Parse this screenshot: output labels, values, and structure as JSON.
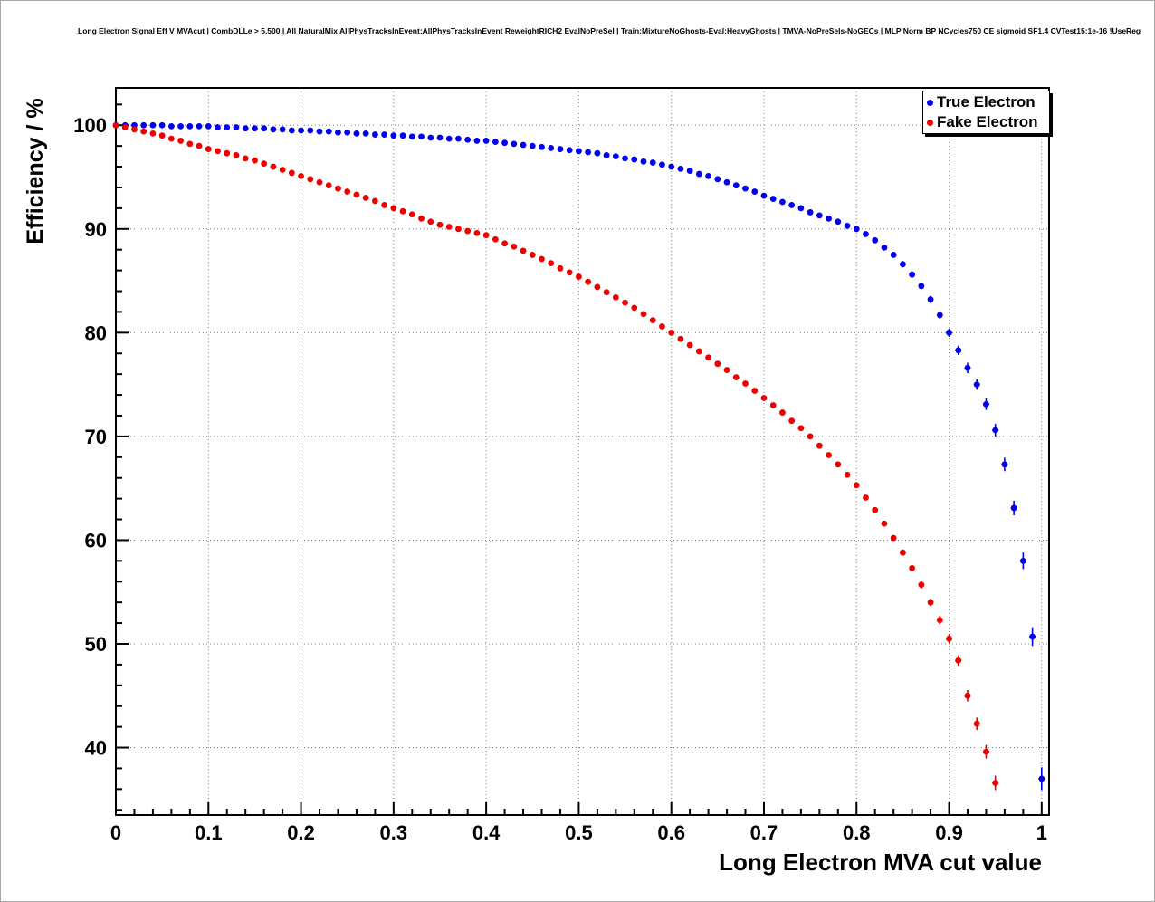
{
  "header": {
    "title": "Long Electron Signal Eff V MVAcut | CombDLLe > 5.500 | All NaturalMix AllPhysTracksInEvent:AllPhysTracksInEvent ReweightRICH2 EvalNoPreSel | Train:MixtureNoGhosts-Eval:HeavyGhosts | TMVA-NoPreSels-NoGECs | MLP Norm BP NCycles750 CE sigmoid SF1.4 CVTest15:1e-16 !UseReg"
  },
  "axes": {
    "y_title": "Efficiency / %",
    "x_title": "Long Electron MVA cut value"
  },
  "legend": {
    "items": [
      {
        "label": "True Electron",
        "color": "#0000ee"
      },
      {
        "label": "Fake Electron",
        "color": "#ee0000"
      }
    ]
  },
  "chart_data": {
    "type": "scatter",
    "title": "Long Electron Signal Eff V MVAcut | CombDLLe > 5.500 | All NaturalMix AllPhysTracksInEvent:AllPhysTracksInEvent ReweightRICH2 EvalNoPreSel | Train:MixtureNoGhosts-Eval:HeavyGhosts | TMVA-NoPreSels-NoGECs | MLP Norm BP NCycles750 CE sigmoid SF1.4 CVTest15:1e-16 !UseReg",
    "xlabel": "Long Electron MVA cut value",
    "ylabel": "Efficiency / %",
    "xlim": [
      0,
      1.008
    ],
    "ylim": [
      33.5,
      103.6
    ],
    "grid": "dotted-major",
    "legend_position": "top-right",
    "x_ticks": [
      0,
      0.1,
      0.2,
      0.3,
      0.4,
      0.5,
      0.6,
      0.7,
      0.8,
      0.9,
      1.0
    ],
    "x_ticklabels": [
      "0",
      "0.1",
      "0.2",
      "0.3",
      "0.4",
      "0.5",
      "0.6",
      "0.7",
      "0.8",
      "0.9",
      "1"
    ],
    "y_ticks": [
      40,
      50,
      60,
      70,
      80,
      90,
      100
    ],
    "y_ticklabels": [
      "40",
      "50",
      "60",
      "70",
      "80",
      "90",
      "100"
    ],
    "series": [
      {
        "name": "True Electron",
        "color": "#0000ee",
        "marker": "circle",
        "x0": 0.0,
        "dx": 0.01,
        "y": [
          100.0,
          100.0,
          100.0,
          100.0,
          100.0,
          100.0,
          99.9,
          99.9,
          99.9,
          99.9,
          99.9,
          99.8,
          99.8,
          99.8,
          99.7,
          99.7,
          99.7,
          99.6,
          99.6,
          99.5,
          99.5,
          99.5,
          99.4,
          99.4,
          99.3,
          99.3,
          99.2,
          99.2,
          99.1,
          99.1,
          99.0,
          99.0,
          98.9,
          98.9,
          98.8,
          98.8,
          98.7,
          98.7,
          98.6,
          98.5,
          98.5,
          98.4,
          98.3,
          98.2,
          98.1,
          98.0,
          97.9,
          97.8,
          97.7,
          97.6,
          97.5,
          97.4,
          97.3,
          97.1,
          97.0,
          96.8,
          96.7,
          96.5,
          96.4,
          96.2,
          96.0,
          95.8,
          95.6,
          95.3,
          95.1,
          94.8,
          94.5,
          94.2,
          93.9,
          93.6,
          93.2,
          92.9,
          92.6,
          92.3,
          92.0,
          91.6,
          91.3,
          91.0,
          90.7,
          90.3,
          90.0,
          89.5,
          88.9,
          88.2,
          87.5,
          86.6,
          85.6,
          84.5,
          83.2,
          81.7,
          80.0,
          78.3,
          76.6,
          75.0,
          73.1,
          70.6,
          67.3,
          63.1,
          58.0,
          50.7,
          37.0
        ],
        "yerr_rle": [
          [
            51,
            0.1
          ],
          [
            30,
            0.15
          ],
          [
            2,
            0.2
          ],
          [
            2,
            0.25
          ],
          [
            3,
            0.3
          ],
          [
            2,
            0.35
          ],
          [
            1,
            0.4
          ],
          [
            1,
            0.45
          ],
          [
            2,
            0.5
          ],
          [
            1,
            0.55
          ],
          [
            1,
            0.6
          ],
          [
            1,
            0.65
          ],
          [
            1,
            0.7
          ],
          [
            1,
            0.8
          ],
          [
            1,
            0.9
          ],
          [
            1,
            1.1
          ]
        ]
      },
      {
        "name": "Fake Electron",
        "color": "#ee0000",
        "marker": "circle",
        "x0": 0.0,
        "dx": 0.01,
        "y": [
          100.0,
          99.8,
          99.6,
          99.4,
          99.2,
          99.0,
          98.7,
          98.5,
          98.2,
          98.0,
          97.7,
          97.5,
          97.3,
          97.1,
          96.8,
          96.6,
          96.3,
          96.0,
          95.7,
          95.4,
          95.1,
          94.8,
          94.5,
          94.2,
          93.9,
          93.6,
          93.3,
          93.0,
          92.7,
          92.3,
          92.0,
          91.7,
          91.4,
          91.0,
          90.7,
          90.4,
          90.2,
          90.0,
          89.8,
          89.6,
          89.4,
          89.0,
          88.6,
          88.3,
          87.9,
          87.5,
          87.1,
          86.7,
          86.2,
          85.8,
          85.4,
          84.9,
          84.4,
          83.9,
          83.4,
          82.9,
          82.4,
          81.8,
          81.2,
          80.6,
          80.0,
          79.4,
          78.8,
          78.2,
          77.6,
          77.0,
          76.4,
          75.7,
          75.1,
          74.4,
          73.7,
          73.0,
          72.3,
          71.5,
          70.8,
          70.0,
          69.1,
          68.2,
          67.3,
          66.3,
          65.3,
          64.1,
          62.9,
          61.6,
          60.2,
          58.8,
          57.3,
          55.7,
          54.0,
          52.3,
          50.5,
          48.4,
          45.0,
          42.3,
          39.6,
          36.6
        ],
        "yerr_rle": [
          [
            51,
            0.1
          ],
          [
            30,
            0.15
          ],
          [
            2,
            0.2
          ],
          [
            2,
            0.25
          ],
          [
            2,
            0.3
          ],
          [
            2,
            0.35
          ],
          [
            1,
            0.4
          ],
          [
            1,
            0.45
          ],
          [
            1,
            0.5
          ],
          [
            1,
            0.55
          ],
          [
            1,
            0.6
          ],
          [
            1,
            0.65
          ],
          [
            1,
            0.7
          ]
        ]
      }
    ]
  }
}
